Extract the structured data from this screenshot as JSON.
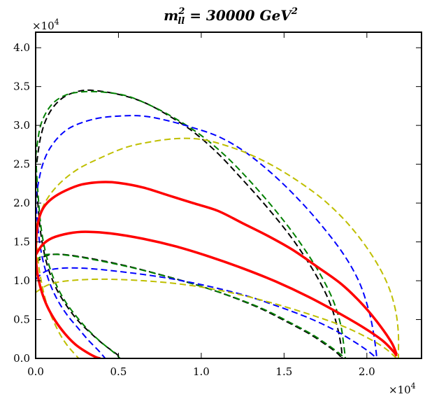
{
  "chart_data": {
    "type": "line",
    "title": {
      "base": "m",
      "sup": "2",
      "sub": "ll",
      "mid": " = 30000 ",
      "unit": "GeV",
      "unit_sup": "2"
    },
    "xlim": [
      0,
      23300
    ],
    "ylim": [
      0,
      42000
    ],
    "x_multiplier": {
      "base": "×10",
      "exp": "4"
    },
    "y_multiplier": {
      "base": "×10",
      "exp": "4"
    },
    "x_ticks": [
      {
        "value": 0,
        "label": "0.0"
      },
      {
        "value": 5000,
        "label": "0.5"
      },
      {
        "value": 10000,
        "label": "1.0"
      },
      {
        "value": 15000,
        "label": "1.5"
      },
      {
        "value": 20000,
        "label": "2.0"
      }
    ],
    "y_ticks": [
      {
        "value": 0,
        "label": "0.0"
      },
      {
        "value": 5000,
        "label": "0.5"
      },
      {
        "value": 10000,
        "label": "1.0"
      },
      {
        "value": 15000,
        "label": "1.5"
      },
      {
        "value": 20000,
        "label": "2.0"
      },
      {
        "value": 25000,
        "label": "2.5"
      },
      {
        "value": 30000,
        "label": "3.0"
      },
      {
        "value": 35000,
        "label": "3.5"
      },
      {
        "value": 40000,
        "label": "4.0"
      }
    ],
    "series": [
      {
        "name": "black-outer",
        "color": "#000000",
        "style": "dashed",
        "width": 2,
        "points": [
          [
            0,
            24000
          ],
          [
            300,
            28500
          ],
          [
            800,
            31500
          ],
          [
            1600,
            33500
          ],
          [
            2600,
            34400
          ],
          [
            3500,
            34500
          ],
          [
            5000,
            34000
          ],
          [
            6500,
            33000
          ],
          [
            8000,
            31300
          ],
          [
            9500,
            29200
          ],
          [
            11000,
            26400
          ],
          [
            12500,
            23000
          ],
          [
            14000,
            19400
          ],
          [
            15500,
            15400
          ],
          [
            16800,
            11200
          ],
          [
            17700,
            7500
          ],
          [
            18200,
            4200
          ],
          [
            18450,
            1500
          ],
          [
            18500,
            0
          ]
        ]
      },
      {
        "name": "black-inner",
        "color": "#000000",
        "style": "dashed",
        "width": 2,
        "points": [
          [
            0,
            12300
          ],
          [
            500,
            13100
          ],
          [
            1100,
            13400
          ],
          [
            2000,
            13300
          ],
          [
            3500,
            12800
          ],
          [
            5500,
            11900
          ],
          [
            7500,
            10800
          ],
          [
            9500,
            9600
          ],
          [
            11500,
            8200
          ],
          [
            13500,
            6500
          ],
          [
            15000,
            4900
          ],
          [
            16500,
            3200
          ],
          [
            17500,
            1800
          ],
          [
            18200,
            700
          ],
          [
            18500,
            0
          ]
        ]
      },
      {
        "name": "black-left",
        "color": "#000000",
        "style": "dashed",
        "width": 2,
        "points": [
          [
            0,
            24000
          ],
          [
            150,
            19500
          ],
          [
            350,
            15500
          ],
          [
            700,
            12000
          ],
          [
            1200,
            9200
          ],
          [
            1800,
            7000
          ],
          [
            2500,
            5000
          ],
          [
            3300,
            3300
          ],
          [
            4100,
            1800
          ],
          [
            4800,
            700
          ],
          [
            5200,
            0
          ]
        ]
      },
      {
        "name": "green-outer",
        "color": "#008000",
        "style": "dashed",
        "width": 2,
        "points": [
          [
            0,
            26000
          ],
          [
            300,
            30000
          ],
          [
            900,
            32500
          ],
          [
            1700,
            33800
          ],
          [
            2700,
            34300
          ],
          [
            4000,
            34300
          ],
          [
            5500,
            33800
          ],
          [
            7000,
            32500
          ],
          [
            8500,
            30800
          ],
          [
            10000,
            28700
          ],
          [
            11500,
            26000
          ],
          [
            13000,
            22700
          ],
          [
            14500,
            19000
          ],
          [
            15800,
            15400
          ],
          [
            17000,
            11500
          ],
          [
            17900,
            7800
          ],
          [
            18400,
            4500
          ],
          [
            18600,
            1800
          ],
          [
            18700,
            0
          ]
        ]
      },
      {
        "name": "green-inner",
        "color": "#008000",
        "style": "dashed",
        "width": 2,
        "points": [
          [
            0,
            12600
          ],
          [
            500,
            13300
          ],
          [
            1200,
            13400
          ],
          [
            2200,
            13200
          ],
          [
            3800,
            12600
          ],
          [
            5800,
            11700
          ],
          [
            7800,
            10600
          ],
          [
            9800,
            9400
          ],
          [
            11800,
            8000
          ],
          [
            13700,
            6400
          ],
          [
            15200,
            4800
          ],
          [
            16600,
            3200
          ],
          [
            17600,
            1800
          ],
          [
            18300,
            700
          ],
          [
            18700,
            0
          ]
        ]
      },
      {
        "name": "green-left",
        "color": "#008000",
        "style": "dashed",
        "width": 2,
        "points": [
          [
            0,
            26000
          ],
          [
            150,
            21000
          ],
          [
            350,
            16500
          ],
          [
            700,
            12800
          ],
          [
            1200,
            9700
          ],
          [
            1800,
            7300
          ],
          [
            2500,
            5300
          ],
          [
            3200,
            3600
          ],
          [
            4000,
            2000
          ],
          [
            4700,
            800
          ],
          [
            5100,
            0
          ]
        ]
      },
      {
        "name": "blue-outer",
        "color": "#0000ff",
        "style": "dashed",
        "width": 2,
        "points": [
          [
            0,
            20700
          ],
          [
            400,
            24800
          ],
          [
            1000,
            27500
          ],
          [
            2000,
            29600
          ],
          [
            3500,
            30800
          ],
          [
            5000,
            31200
          ],
          [
            6500,
            31200
          ],
          [
            8000,
            30600
          ],
          [
            9500,
            29700
          ],
          [
            11000,
            28600
          ],
          [
            12500,
            26800
          ],
          [
            14000,
            24300
          ],
          [
            15500,
            21300
          ],
          [
            17000,
            17800
          ],
          [
            18500,
            13700
          ],
          [
            19500,
            10000
          ],
          [
            20100,
            6300
          ],
          [
            20400,
            3300
          ],
          [
            20550,
            1000
          ],
          [
            20600,
            0
          ]
        ]
      },
      {
        "name": "blue-inner",
        "color": "#0000ff",
        "style": "dashed",
        "width": 2,
        "points": [
          [
            0,
            10200
          ],
          [
            600,
            11200
          ],
          [
            1500,
            11600
          ],
          [
            3000,
            11600
          ],
          [
            5000,
            11200
          ],
          [
            7500,
            10500
          ],
          [
            10000,
            9500
          ],
          [
            12500,
            8200
          ],
          [
            14500,
            6800
          ],
          [
            16500,
            5200
          ],
          [
            18000,
            3700
          ],
          [
            19200,
            2200
          ],
          [
            20100,
            900
          ],
          [
            20600,
            0
          ]
        ]
      },
      {
        "name": "blue-left",
        "color": "#0000ff",
        "style": "dashed",
        "width": 2,
        "points": [
          [
            0,
            20700
          ],
          [
            150,
            16500
          ],
          [
            400,
            13000
          ],
          [
            800,
            10000
          ],
          [
            1300,
            7600
          ],
          [
            1900,
            5600
          ],
          [
            2600,
            3800
          ],
          [
            3200,
            2300
          ],
          [
            3800,
            1000
          ],
          [
            4200,
            0
          ]
        ]
      },
      {
        "name": "yellow-outer",
        "color": "#bfbf00",
        "style": "dashed",
        "width": 2,
        "points": [
          [
            0,
            16800
          ],
          [
            500,
            19800
          ],
          [
            1300,
            22200
          ],
          [
            2500,
            24300
          ],
          [
            4000,
            25900
          ],
          [
            5500,
            27200
          ],
          [
            7000,
            27900
          ],
          [
            8500,
            28300
          ],
          [
            10000,
            28200
          ],
          [
            11500,
            27400
          ],
          [
            13000,
            26200
          ],
          [
            14500,
            24600
          ],
          [
            16000,
            22600
          ],
          [
            17500,
            20200
          ],
          [
            19000,
            17000
          ],
          [
            20300,
            13300
          ],
          [
            21200,
            9800
          ],
          [
            21700,
            6500
          ],
          [
            21900,
            3300
          ],
          [
            21900,
            0
          ]
        ]
      },
      {
        "name": "yellow-inner",
        "color": "#bfbf00",
        "style": "dashed",
        "width": 2,
        "points": [
          [
            0,
            8500
          ],
          [
            800,
            9500
          ],
          [
            2000,
            10000
          ],
          [
            4000,
            10200
          ],
          [
            6500,
            10000
          ],
          [
            9000,
            9500
          ],
          [
            11500,
            8600
          ],
          [
            14000,
            7300
          ],
          [
            16500,
            5700
          ],
          [
            18500,
            4200
          ],
          [
            20000,
            2700
          ],
          [
            21100,
            1300
          ],
          [
            21800,
            0
          ]
        ]
      },
      {
        "name": "yellow-left",
        "color": "#bfbf00",
        "style": "dashed",
        "width": 2,
        "points": [
          [
            0,
            16800
          ],
          [
            150,
            12500
          ],
          [
            400,
            9300
          ],
          [
            700,
            6800
          ],
          [
            1100,
            4700
          ],
          [
            1500,
            3000
          ],
          [
            1900,
            1700
          ],
          [
            2300,
            700
          ],
          [
            2600,
            0
          ]
        ]
      },
      {
        "name": "red-outer",
        "color": "#ff0000",
        "style": "solid",
        "width": 3.5,
        "points": [
          [
            0,
            13500
          ],
          [
            50,
            16000
          ],
          [
            200,
            18000
          ],
          [
            500,
            19500
          ],
          [
            1000,
            20600
          ],
          [
            1800,
            21600
          ],
          [
            2800,
            22400
          ],
          [
            4000,
            22700
          ],
          [
            5000,
            22600
          ],
          [
            6500,
            22000
          ],
          [
            8000,
            21000
          ],
          [
            9500,
            20000
          ],
          [
            11000,
            19000
          ],
          [
            12500,
            17400
          ],
          [
            14000,
            15800
          ],
          [
            15500,
            14000
          ],
          [
            17000,
            11800
          ],
          [
            18500,
            9500
          ],
          [
            19800,
            6800
          ],
          [
            20800,
            4200
          ],
          [
            21500,
            2000
          ],
          [
            21800,
            500
          ]
        ]
      },
      {
        "name": "red-inner",
        "color": "#ff0000",
        "style": "solid",
        "width": 3.5,
        "points": [
          [
            0,
            13300
          ],
          [
            400,
            14600
          ],
          [
            1000,
            15500
          ],
          [
            2000,
            16100
          ],
          [
            3000,
            16300
          ],
          [
            4500,
            16100
          ],
          [
            6500,
            15400
          ],
          [
            8500,
            14400
          ],
          [
            10500,
            13100
          ],
          [
            12500,
            11600
          ],
          [
            14500,
            9900
          ],
          [
            16500,
            7900
          ],
          [
            18500,
            5600
          ],
          [
            20000,
            3700
          ],
          [
            21000,
            2200
          ],
          [
            21600,
            900
          ],
          [
            21800,
            300
          ]
        ]
      },
      {
        "name": "red-left",
        "color": "#ff0000",
        "style": "solid",
        "width": 3.5,
        "points": [
          [
            0,
            13300
          ],
          [
            100,
            11000
          ],
          [
            350,
            8700
          ],
          [
            700,
            6700
          ],
          [
            1200,
            4800
          ],
          [
            1800,
            3100
          ],
          [
            2400,
            1800
          ],
          [
            3000,
            900
          ],
          [
            3600,
            200
          ],
          [
            3900,
            0
          ]
        ]
      }
    ]
  }
}
